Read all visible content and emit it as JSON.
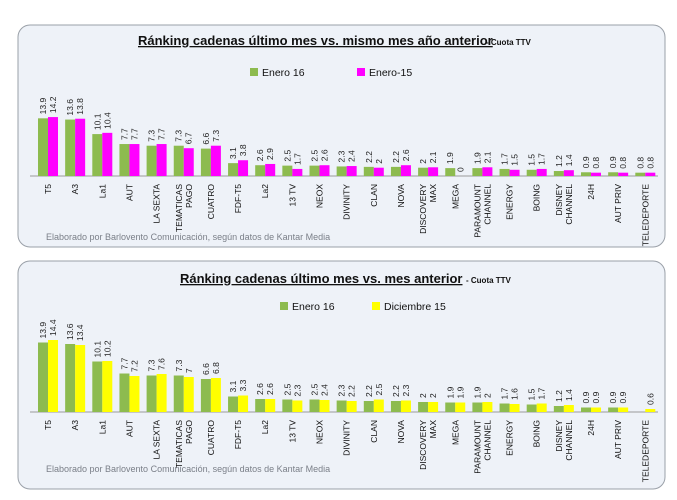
{
  "chart_data": [
    {
      "type": "bar",
      "title": "Ránking cadenas último mes vs. mismo mes año anterior",
      "subtitle": "- Cuota TTV",
      "legend_position": "top",
      "grid": false,
      "ylim": [
        0,
        15
      ],
      "categories": [
        "T5",
        "A3",
        "La1",
        "AUT",
        "LA SEXTA",
        "TEMATICAS\nPAGO",
        "CUATRO",
        "FDF-T5",
        "La2",
        "13 TV",
        "NEOX",
        "DIVINITY",
        "CLAN",
        "NOVA",
        "DISCOVERY\nMAX",
        "MEGA",
        "PARAMOUNT\nCHANNEL",
        "ENERGY",
        "BOING",
        "DISNEY\nCHANNEL",
        "24H",
        "AUT PRIV",
        "TELEDEPORTE"
      ],
      "series": [
        {
          "name": "Enero 16",
          "color": "#8dbb4f",
          "values": [
            13.9,
            13.6,
            10.1,
            7.7,
            7.3,
            7.3,
            6.6,
            3.1,
            2.6,
            2.5,
            2.5,
            2.3,
            2.2,
            2.2,
            2,
            1.9,
            1.9,
            1.7,
            1.5,
            1.2,
            0.9,
            0.9,
            0.8
          ]
        },
        {
          "name": "Enero-15",
          "color": "#ff00ff",
          "values": [
            14.2,
            13.8,
            10.4,
            7.7,
            7.7,
            6.7,
            7.3,
            3.8,
            2.9,
            1.7,
            2.6,
            2.4,
            2,
            2.6,
            2.1,
            0,
            2.1,
            1.5,
            1.7,
            1.4,
            0.8,
            0.8,
            0.8
          ]
        }
      ],
      "footnote": "Elaborado por Barlovento Comunicación, según datos de Kantar Media"
    },
    {
      "type": "bar",
      "title": "Ránking cadenas último mes vs. mes anterior",
      "subtitle": "- Cuota TTV",
      "legend_position": "top",
      "grid": false,
      "ylim": [
        0,
        15
      ],
      "categories": [
        "T5",
        "A3",
        "La1",
        "AUT",
        "LA SEXTA",
        "TEMATICAS\nPAGO",
        "CUATRO",
        "FDF-T5",
        "La2",
        "13 TV",
        "NEOX",
        "DIVINITY",
        "CLAN",
        "NOVA",
        "DISCOVERY\nMAX",
        "MEGA",
        "PARAMOUNT\nCHANNEL",
        "ENERGY",
        "BOING",
        "DISNEY\nCHANNEL",
        "24H",
        "AUT PRIV",
        "TELEDEPORTE"
      ],
      "series": [
        {
          "name": "Enero 16",
          "color": "#8dbb4f",
          "values": [
            13.9,
            13.6,
            10.1,
            7.7,
            7.3,
            7.3,
            6.6,
            3.1,
            2.6,
            2.5,
            2.5,
            2.3,
            2.2,
            2.2,
            2,
            1.9,
            1.9,
            1.7,
            1.5,
            1.2,
            0.9,
            0.9,
            null
          ]
        },
        {
          "name": "Diciembre 15",
          "color": "#ffff00",
          "values": [
            14.4,
            13.4,
            10.2,
            7.2,
            7.6,
            7,
            6.8,
            3.3,
            2.6,
            2.3,
            2.4,
            2.2,
            2.5,
            2.3,
            2,
            1.9,
            2,
            1.6,
            1.7,
            1.4,
            0.9,
            0.9,
            0.6
          ]
        }
      ],
      "footnote": "Elaborado por Barlovento Comunicación, según datos de Kantar Media"
    }
  ]
}
